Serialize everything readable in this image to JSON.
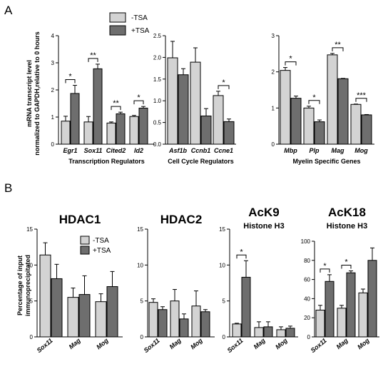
{
  "panel_a": {
    "letter": "A",
    "ylabel_lines": [
      "mRNA transcript level",
      "normalized to GAPDH,relative to 0 hours"
    ]
  },
  "panel_b": {
    "letter": "B",
    "ylabel_lines": [
      "Percentage of input",
      "immunoprecipitated"
    ]
  },
  "legend_a": {
    "items": [
      "-TSA",
      "+TSA"
    ]
  },
  "legend_b": {
    "items": [
      "-TSA",
      "+TSA"
    ]
  },
  "colors": {
    "minus_tsa": "#d3d3d3",
    "plus_tsa": "#6e6e6e"
  },
  "chart_data": [
    {
      "type": "bar",
      "panel": "A",
      "title": "",
      "xlabel": "Transcription Regulators",
      "ylabel": "mRNA transcript level normalized to GAPDH,relative to 0 hours",
      "categories": [
        "Egr1",
        "Sox11",
        "Cited2",
        "Id2"
      ],
      "series": [
        {
          "name": "-TSA",
          "values": [
            0.85,
            0.82,
            0.78,
            1.02
          ],
          "errors": [
            0.18,
            0.2,
            0.04,
            0.04
          ]
        },
        {
          "name": "+TSA",
          "values": [
            1.87,
            2.78,
            1.12,
            1.33
          ],
          "errors": [
            0.3,
            0.17,
            0.06,
            0.06
          ]
        }
      ],
      "significance": [
        "*",
        "**",
        "**",
        "*"
      ],
      "ylim": [
        0,
        4
      ],
      "yticks": [
        0,
        1,
        2,
        3,
        4
      ]
    },
    {
      "type": "bar",
      "panel": "A",
      "title": "",
      "xlabel": "Cell Cycle Regulators",
      "ylabel": "",
      "categories": [
        "Asf1b",
        "Ccnb1",
        "Ccne1"
      ],
      "series": [
        {
          "name": "-TSA",
          "values": [
            1.99,
            1.89,
            1.12
          ],
          "errors": [
            0.38,
            0.33,
            0.1
          ]
        },
        {
          "name": "+TSA",
          "values": [
            1.6,
            0.65,
            0.52
          ],
          "errors": [
            0.14,
            0.17,
            0.06
          ]
        }
      ],
      "significance": [
        "",
        "",
        "*"
      ],
      "ylim": [
        0,
        2.5
      ],
      "yticks": [
        0.0,
        0.5,
        1.0,
        1.5,
        2.0,
        2.5
      ]
    },
    {
      "type": "bar",
      "panel": "A",
      "title": "",
      "xlabel": "Myelin Specific Genes",
      "ylabel": "",
      "categories": [
        "Mbp",
        "Plp",
        "Mag",
        "Mog"
      ],
      "series": [
        {
          "name": "-TSA",
          "values": [
            2.04,
            1.0,
            2.47,
            1.1
          ],
          "errors": [
            0.08,
            0.05,
            0.04,
            0.01
          ]
        },
        {
          "name": "+TSA",
          "values": [
            1.27,
            0.62,
            1.81,
            0.81
          ],
          "errors": [
            0.06,
            0.05,
            0.01,
            0.01
          ]
        }
      ],
      "significance": [
        "*",
        "*",
        "**",
        "***"
      ],
      "ylim": [
        0,
        3
      ],
      "yticks": [
        0,
        1,
        2,
        3
      ]
    },
    {
      "type": "bar",
      "panel": "B",
      "title": "HDAC1",
      "subtitle": "",
      "xlabel": "",
      "ylabel": "Percentage of input immunoprecipitated",
      "categories": [
        "Sox11",
        "Mag",
        "Mog"
      ],
      "series": [
        {
          "name": "-TSA",
          "values": [
            11.4,
            5.5,
            4.9
          ],
          "errors": [
            1.7,
            1.3,
            1.1
          ]
        },
        {
          "name": "+TSA",
          "values": [
            8.1,
            5.9,
            7.0
          ],
          "errors": [
            2.0,
            2.6,
            2.1
          ]
        }
      ],
      "significance": [
        "",
        "",
        ""
      ],
      "ylim": [
        0,
        15
      ],
      "yticks": [
        0,
        5,
        10,
        15
      ]
    },
    {
      "type": "bar",
      "panel": "B",
      "title": "HDAC2",
      "subtitle": "",
      "xlabel": "",
      "ylabel": "",
      "categories": [
        "Sox11",
        "Mag",
        "Mog"
      ],
      "series": [
        {
          "name": "-TSA",
          "values": [
            4.8,
            5.0,
            4.3
          ],
          "errors": [
            0.5,
            1.6,
            2.1
          ]
        },
        {
          "name": "+TSA",
          "values": [
            3.8,
            2.5,
            3.5
          ],
          "errors": [
            0.4,
            0.7,
            0.3
          ]
        }
      ],
      "significance": [
        "",
        "",
        ""
      ],
      "ylim": [
        0,
        15
      ],
      "yticks": [
        0,
        5,
        10,
        15
      ]
    },
    {
      "type": "bar",
      "panel": "B",
      "title": "AcK9",
      "subtitle": "Histone H3",
      "xlabel": "",
      "ylabel": "",
      "categories": [
        "Sox11",
        "Mag",
        "Mog"
      ],
      "series": [
        {
          "name": "-TSA",
          "values": [
            1.8,
            1.3,
            1.0
          ],
          "errors": [
            0.1,
            0.8,
            0.4
          ]
        },
        {
          "name": "+TSA",
          "values": [
            8.3,
            1.4,
            1.2
          ],
          "errors": [
            2.3,
            0.7,
            0.3
          ]
        }
      ],
      "significance": [
        "*",
        "",
        ""
      ],
      "ylim": [
        0,
        15
      ],
      "yticks": [
        0,
        5,
        10,
        15
      ]
    },
    {
      "type": "bar",
      "panel": "B",
      "title": "AcK18",
      "subtitle": "Histone H3",
      "xlabel": "",
      "ylabel": "",
      "categories": [
        "Sox11",
        "Mag",
        "Mog"
      ],
      "series": [
        {
          "name": "-TSA",
          "values": [
            28,
            30,
            46
          ],
          "errors": [
            5,
            3,
            4
          ]
        },
        {
          "name": "+TSA",
          "values": [
            58,
            67,
            80
          ],
          "errors": [
            7,
            2,
            13
          ]
        }
      ],
      "significance": [
        "*",
        "*",
        ""
      ],
      "ylim": [
        0,
        100
      ],
      "yticks": [
        0,
        20,
        40,
        60,
        80,
        100
      ]
    }
  ]
}
